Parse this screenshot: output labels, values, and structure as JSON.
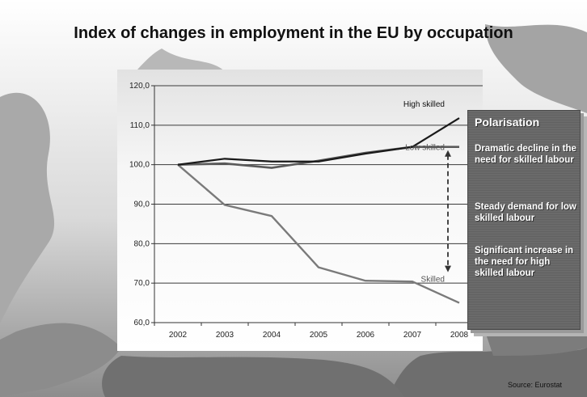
{
  "slide": {
    "title": "Index of changes in employment in the EU by occupation",
    "source": "Source: Eurostat"
  },
  "side_panel": {
    "title": "Polarisation",
    "points": [
      "Dramatic decline in the need for skilled labour",
      "Steady demand for low skilled labour",
      "Significant increase in the need for high skilled labour"
    ]
  },
  "colors": {
    "high_skilled": "#1a1a1a",
    "low_skilled": "#5a5a5a",
    "skilled": "#7a7a7a",
    "gridline": "#3a3a3a"
  },
  "chart_data": {
    "type": "line",
    "title": "",
    "xlabel": "",
    "ylabel": "",
    "categories": [
      "2002",
      "2003",
      "2004",
      "2005",
      "2006",
      "2007",
      "2008"
    ],
    "y_ticks": [
      "60,0",
      "70,0",
      "80,0",
      "90,0",
      "100,0",
      "110,0",
      "120,0"
    ],
    "ylim": [
      60,
      120
    ],
    "grid": true,
    "series": [
      {
        "name": "High skilled",
        "values": [
          100.0,
          101.5,
          100.8,
          100.8,
          102.8,
          104.5,
          111.8
        ]
      },
      {
        "name": "Low skilled",
        "values": [
          100.0,
          100.3,
          99.2,
          101.0,
          103.0,
          104.5,
          104.5
        ]
      },
      {
        "name": "Skilled",
        "values": [
          100.0,
          89.8,
          87.0,
          74.0,
          70.6,
          70.4,
          65.0
        ]
      }
    ],
    "annotations": [
      "dashed double-headed arrow at 2008 between Skilled and Low skilled lines"
    ]
  }
}
